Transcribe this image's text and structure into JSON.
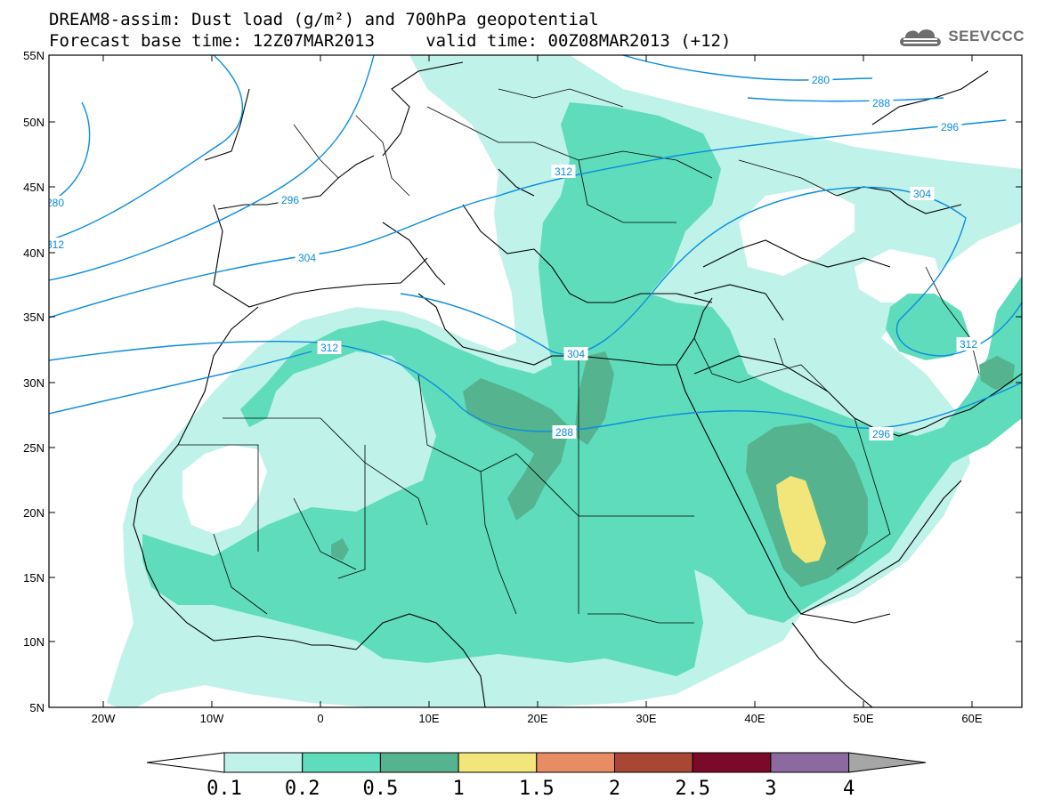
{
  "header": {
    "line1": "DREAM8-assim: Dust load (g/m²) and 700hPa geopotential",
    "line2": "Forecast base time: 12Z07MAR2013     valid time: 00Z08MAR2013 (+12)"
  },
  "logo": {
    "text": "SEEVCCC",
    "icon": "cloud-icon"
  },
  "axes": {
    "lat_labels": [
      "55N",
      "50N",
      "45N",
      "40N",
      "35N",
      "30N",
      "25N",
      "20N",
      "15N",
      "10N",
      "5N"
    ],
    "lon_labels": [
      "20W",
      "10W",
      "0",
      "10E",
      "20E",
      "30E",
      "40E",
      "50E",
      "60E"
    ]
  },
  "contour_labels": [
    "280",
    "288",
    "296",
    "304",
    "312",
    "296",
    "288",
    "304",
    "312",
    "296",
    "304",
    "312",
    "280",
    "312"
  ],
  "colorbar": {
    "ticks": [
      "0.1",
      "0.2",
      "0.5",
      "1",
      "1.5",
      "2",
      "2.5",
      "3",
      "4"
    ],
    "colors": [
      "#ffffff",
      "#bff2e8",
      "#5fdcbb",
      "#55b48f",
      "#f2e57a",
      "#e88c64",
      "#a84734",
      "#7b0a2a",
      "#8c6aa0",
      "#a6a6a6"
    ]
  },
  "legend_colors": {
    "dust_01": "#bff2e8",
    "dust_02": "#5fdcbb",
    "dust_05": "#55b48f",
    "dust_1": "#f2e57a",
    "contour": "#0a8ce0"
  }
}
